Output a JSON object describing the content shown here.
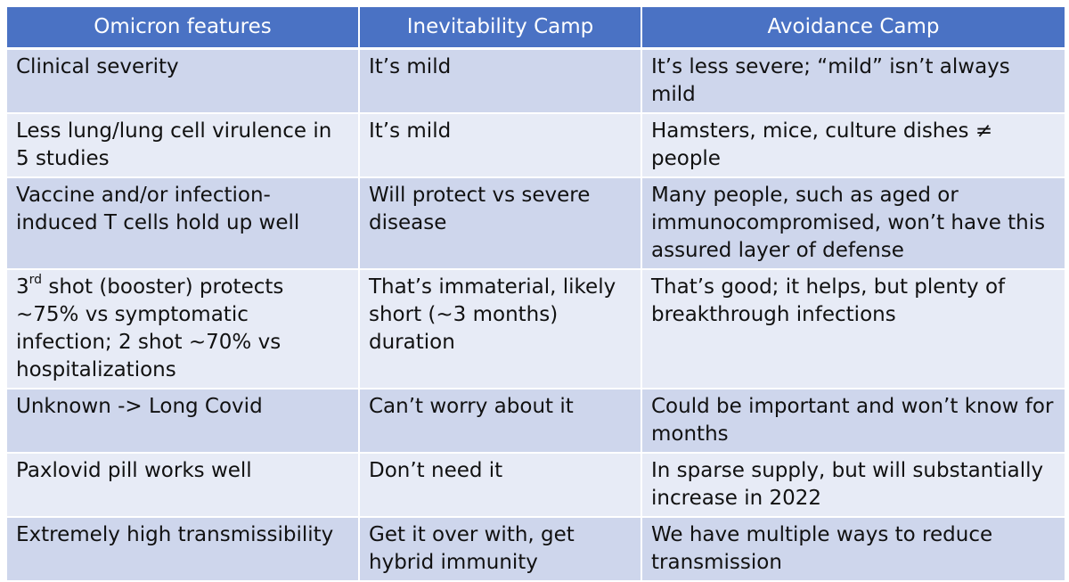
{
  "table": {
    "headers": [
      "Omicron features",
      "Inevitability Camp",
      "Avoidance Camp"
    ],
    "rows": [
      {
        "feature": "Clinical severity",
        "inevitability": "It’s mild",
        "avoidance": "It’s less severe; “mild” isn’t always mild"
      },
      {
        "feature": "Less lung/lung cell virulence in 5 studies",
        "inevitability": "It’s mild",
        "avoidance": "Hamsters, mice, culture dishes ≠ people"
      },
      {
        "feature": "Vaccine and/or infection-induced T cells hold up well",
        "inevitability": "Will protect vs severe disease",
        "avoidance": "Many people, such as aged or immunocompromised, won’t have this assured layer of defense"
      },
      {
        "feature_prefix": "3",
        "feature_sup": "rd",
        "feature_rest": " shot (booster) protects ~75% vs symptomatic infection; 2 shot ~70% vs hospitalizations",
        "inevitability": "That’s immaterial, likely short (~3 months) duration",
        "avoidance": "That’s good; it helps, but plenty of breakthrough infections"
      },
      {
        "feature": "Unknown -> Long Covid",
        "inevitability": "Can’t worry about it",
        "avoidance": "Could be important and won’t know for months"
      },
      {
        "feature": "Paxlovid pill works well",
        "inevitability": "Don’t need it",
        "avoidance": "In sparse supply, but will substantially increase in 2022"
      },
      {
        "feature": "Extremely high transmissibility",
        "inevitability": "Get it over with, get hybrid immunity",
        "avoidance": "We have multiple ways to reduce transmission"
      }
    ]
  },
  "colors": {
    "header_bg": "#4a72c4",
    "row_dark": "#ced6ec",
    "row_light": "#e7ebf6"
  }
}
